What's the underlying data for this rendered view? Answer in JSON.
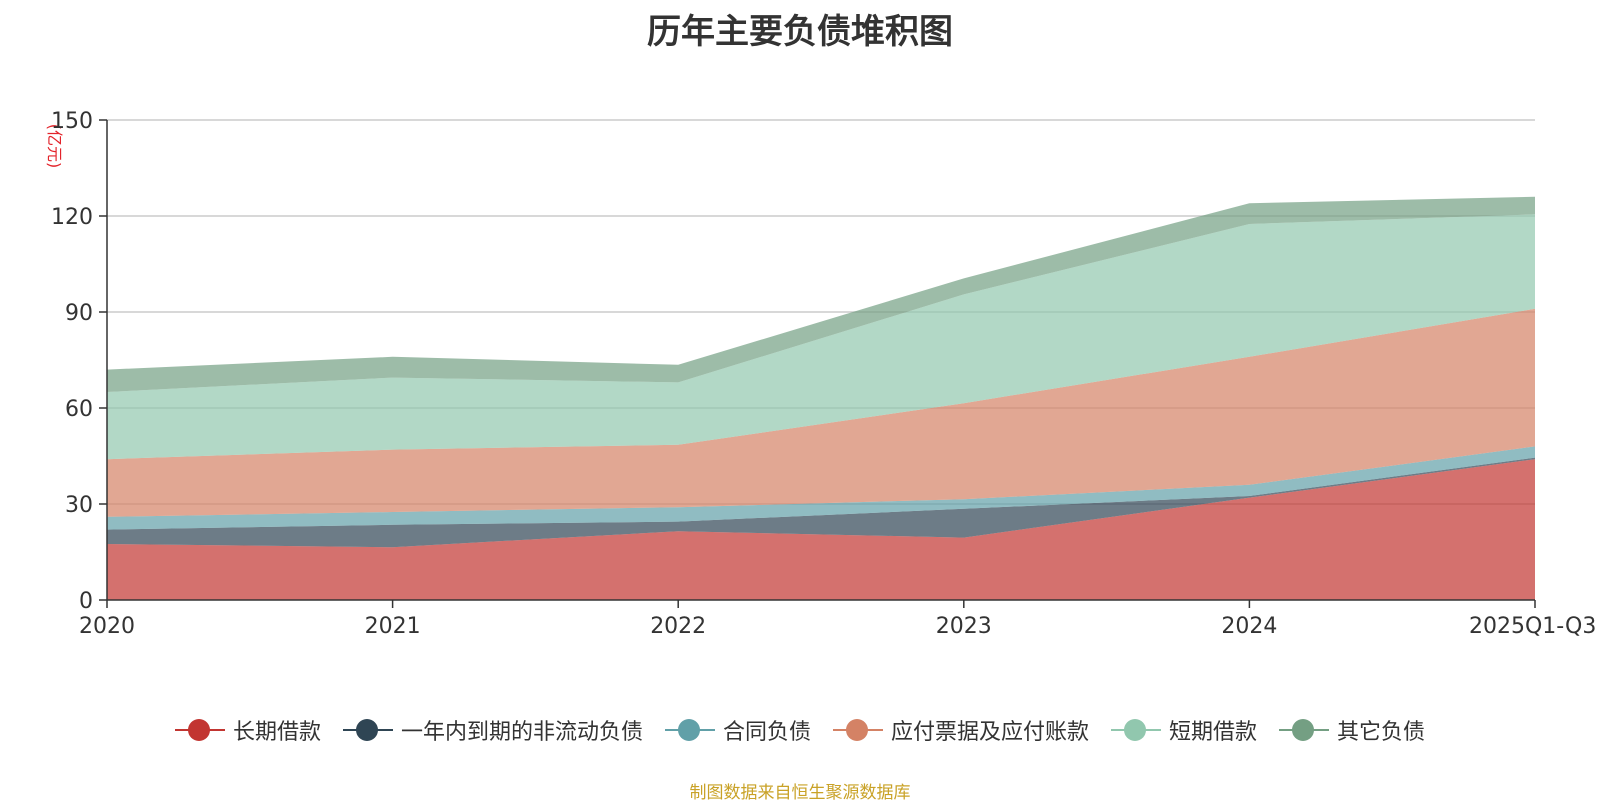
{
  "chart_data": {
    "type": "area",
    "stacked": true,
    "title": "历年主要负债堆积图",
    "unit_label": "(亿元)",
    "categories": [
      "2020",
      "2021",
      "2022",
      "2023",
      "2024",
      "2025Q1-Q3"
    ],
    "ylim": [
      0,
      150
    ],
    "yticks": [
      0,
      30,
      60,
      90,
      120,
      150
    ],
    "grid": true,
    "legend_position": "bottom",
    "series": [
      {
        "name": "长期借款",
        "color": "#c23531",
        "values": [
          17.5,
          16.5,
          21.5,
          19.5,
          32.0,
          44.0
        ]
      },
      {
        "name": "一年内到期的非流动负债",
        "color": "#2f4554",
        "values": [
          4.5,
          7.0,
          3.0,
          9.0,
          0.5,
          0.5
        ]
      },
      {
        "name": "合同负债",
        "color": "#61a0a8",
        "values": [
          4.0,
          4.0,
          4.5,
          3.0,
          3.5,
          3.5
        ]
      },
      {
        "name": "应付票据及应付账款",
        "color": "#d48265",
        "values": [
          18.0,
          19.5,
          19.5,
          30.0,
          40.0,
          43.0
        ]
      },
      {
        "name": "短期借款",
        "color": "#91c7ae",
        "values": [
          21.0,
          22.5,
          19.5,
          34.0,
          41.5,
          29.5
        ]
      },
      {
        "name": "其它负债",
        "color": "#749f83",
        "values": [
          7.0,
          6.5,
          5.5,
          5.0,
          6.5,
          5.5
        ]
      }
    ]
  },
  "source_note": "制图数据来自恒生聚源数据库"
}
